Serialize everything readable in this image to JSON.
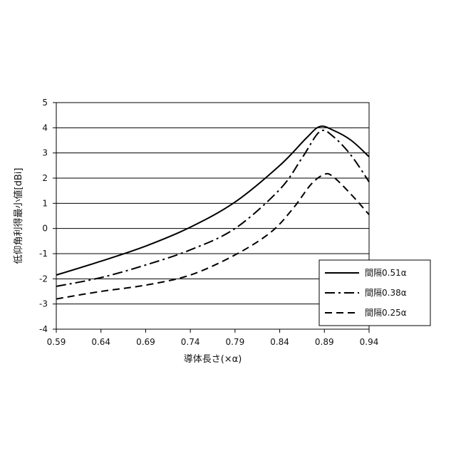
{
  "chart_data": {
    "type": "line",
    "title": "",
    "xlabel": "導体長さ(×α)",
    "ylabel": "低仰角利得最小値[dBi]",
    "xlim": [
      0.59,
      0.94
    ],
    "ylim": [
      -4,
      5
    ],
    "x_ticks": [
      "0.59",
      "0.64",
      "0.69",
      "0.74",
      "0.79",
      "0.84",
      "0.89",
      "0.94"
    ],
    "y_ticks": [
      "5",
      "4",
      "3",
      "2",
      "1",
      "0",
      "-1",
      "-2",
      "-3",
      "-4"
    ],
    "grid": "horizontal",
    "legend_position": "bottom-right",
    "series": [
      {
        "name": "間隔0.51α",
        "dash": "solid",
        "x": [
          0.59,
          0.64,
          0.69,
          0.74,
          0.79,
          0.84,
          0.87,
          0.885,
          0.9,
          0.92,
          0.94
        ],
        "y": [
          -1.85,
          -1.3,
          -0.7,
          0.05,
          1.05,
          2.5,
          3.6,
          4.05,
          3.9,
          3.5,
          2.85
        ]
      },
      {
        "name": "間隔0.38α",
        "dash": "dashdot",
        "x": [
          0.59,
          0.64,
          0.69,
          0.74,
          0.79,
          0.84,
          0.865,
          0.885,
          0.9,
          0.92,
          0.94
        ],
        "y": [
          -2.3,
          -1.95,
          -1.45,
          -0.85,
          0.0,
          1.55,
          2.8,
          3.85,
          3.65,
          2.9,
          1.85
        ]
      },
      {
        "name": "間隔0.25α",
        "dash": "dashed",
        "x": [
          0.59,
          0.64,
          0.69,
          0.74,
          0.79,
          0.83,
          0.855,
          0.875,
          0.89,
          0.9,
          0.92,
          0.94
        ],
        "y": [
          -2.8,
          -2.5,
          -2.25,
          -1.85,
          -1.05,
          -0.15,
          0.8,
          1.75,
          2.15,
          2.05,
          1.35,
          0.55
        ]
      }
    ]
  }
}
